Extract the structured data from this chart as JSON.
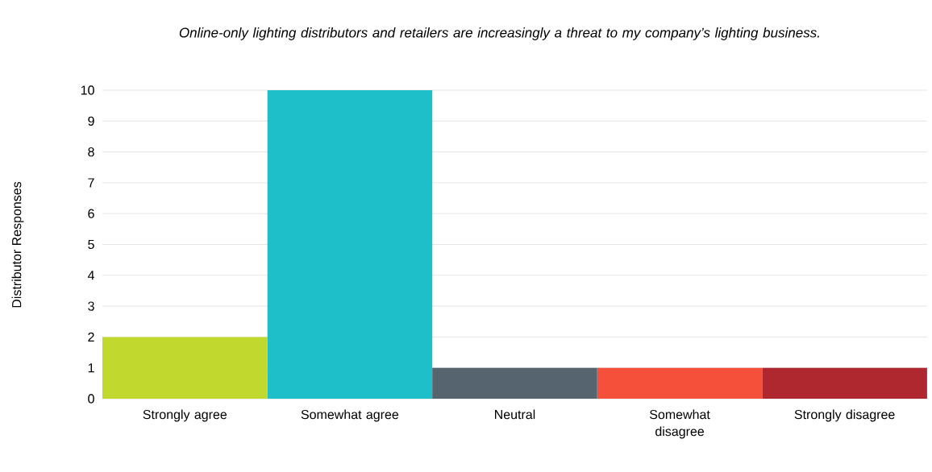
{
  "chart_data": {
    "type": "bar",
    "title": "Online-only lighting distributors and retailers are increasingly a threat to my company’s lighting business.",
    "ylabel": "Distributor Responses",
    "categories": [
      "Strongly agree",
      "Somewhat agree",
      "Neutral",
      "Somewhat disagree",
      "Strongly disagree"
    ],
    "values": [
      2,
      10,
      1,
      1,
      1
    ],
    "colors": [
      "#c1d82f",
      "#1fbfca",
      "#566470",
      "#f5503a",
      "#b0282f"
    ],
    "ylim": [
      0,
      10
    ],
    "yticks": [
      0,
      1,
      2,
      3,
      4,
      5,
      6,
      7,
      8,
      9,
      10
    ],
    "grid": "y"
  }
}
